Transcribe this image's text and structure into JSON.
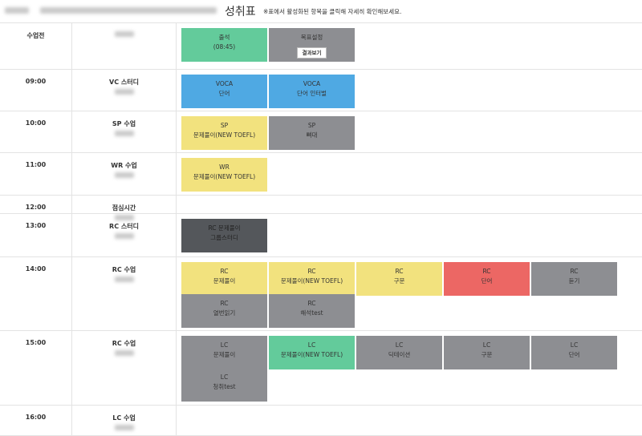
{
  "header": {
    "title": "성취표",
    "note": "※표에서 활성화된 항목을 클릭해 자세히 확인해보세요."
  },
  "table": {
    "rows": [
      {
        "time": "수업전",
        "subject": null,
        "tiles": [
          {
            "line1": "출석",
            "line2": "(08:45)",
            "color": "#63cb9b"
          },
          {
            "line1": "목표설정",
            "line2": null,
            "color": "#8d8e92",
            "button": "결과보기"
          }
        ]
      },
      {
        "time": "09:00",
        "subject": "VC 스터디",
        "tiles": [
          {
            "line1": "VOCA",
            "line2": "단어",
            "color": "#4fa9e3"
          },
          {
            "line1": "VOCA",
            "line2": "단어 인터벌",
            "color": "#4fa9e3"
          }
        ]
      },
      {
        "time": "10:00",
        "subject": "SP 수업",
        "tiles": [
          {
            "line1": "SP",
            "line2": "문제풀이(NEW TOEFL)",
            "color": "#f2e27e"
          },
          {
            "line1": "SP",
            "line2": "뼈대",
            "color": "#8d8e92"
          }
        ]
      },
      {
        "time": "11:00",
        "subject": "WR 수업",
        "tiles": [
          {
            "line1": "WR",
            "line2": "문제풀이(NEW TOEFL)",
            "color": "#f2e27e"
          }
        ]
      },
      {
        "time": "12:00",
        "subject": "점심시간",
        "tiles": []
      },
      {
        "time": "13:00",
        "subject": "RC 스터디",
        "tiles": [
          {
            "line1": "RC 문제풀이",
            "line2": "그룹스터디",
            "color": "#54575b"
          }
        ]
      },
      {
        "time": "14:00",
        "subject": "RC 수업",
        "tiles": [
          {
            "line1": "RC",
            "line2": "문제풀이",
            "color": "#f2e27e"
          },
          {
            "line1": "RC",
            "line2": "문제풀이(NEW TOEFL)",
            "color": "#f2e27e"
          },
          {
            "line1": "RC",
            "line2": "구문",
            "color": "#f2e27e"
          },
          {
            "line1": "RC",
            "line2": "단어",
            "color": "#ec6764"
          },
          {
            "line1": "RC",
            "line2": "듣기",
            "color": "#8d8e92"
          },
          {
            "line1": "RC",
            "line2": "열번읽기",
            "color": "#8d8e92"
          },
          {
            "line1": "RC",
            "line2": "해석test",
            "color": "#8d8e92"
          }
        ]
      },
      {
        "time": "15:00",
        "subject": "RC 수업",
        "tiles": [
          {
            "line1": "LC",
            "line2": "문제풀이",
            "color": "#8d8e92"
          },
          {
            "line1": "LC",
            "line2": "문제풀이(NEW TOEFL)",
            "color": "#63cb9b"
          },
          {
            "line1": "LC",
            "line2": "딕테이션",
            "color": "#8d8e92"
          },
          {
            "line1": "LC",
            "line2": "구문",
            "color": "#8d8e92"
          },
          {
            "line1": "LC",
            "line2": "단어",
            "color": "#8d8e92"
          },
          {
            "line1": "LC",
            "line2": "청취test",
            "color": "#8d8e92"
          }
        ]
      },
      {
        "time": "16:00",
        "subject": "LC 수업",
        "tiles": []
      }
    ]
  }
}
